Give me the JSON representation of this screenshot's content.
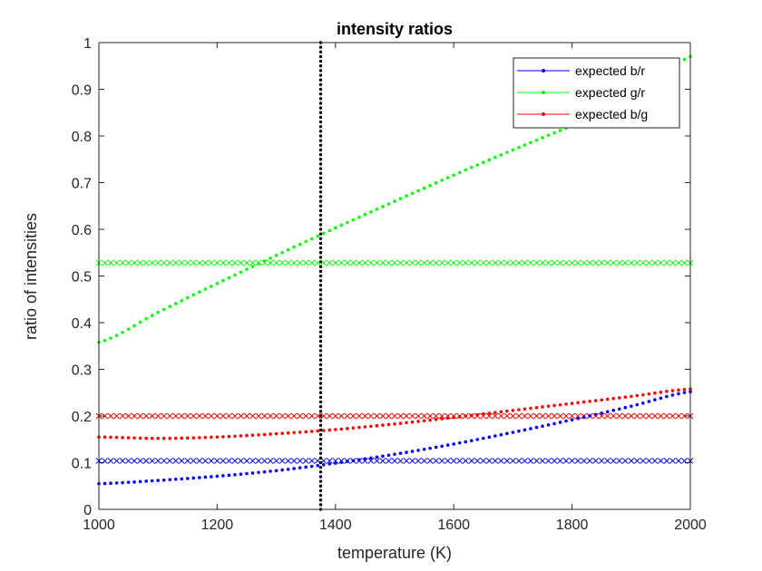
{
  "chart_data": {
    "type": "line",
    "title": "intensity ratios",
    "xlabel": "temperature (K)",
    "ylabel": "ratio of intensities",
    "xlim": [
      1000,
      2000
    ],
    "ylim": [
      0,
      1
    ],
    "xticks": [
      "1000",
      "1200",
      "1400",
      "1600",
      "1800",
      "2000"
    ],
    "yticks": [
      "0",
      "0.1",
      "0.2",
      "0.3",
      "0.4",
      "0.5",
      "0.6",
      "0.7",
      "0.8",
      "0.9",
      "1"
    ],
    "grid": false,
    "legend_position": "top-right",
    "series": [
      {
        "name": "expected b/r",
        "color": "#0000ff",
        "marker": "dot",
        "x": [
          1000,
          1100,
          1200,
          1300,
          1400,
          1500,
          1600,
          1700,
          1800,
          1900,
          2000
        ],
        "values": [
          0.055,
          0.062,
          0.071,
          0.083,
          0.099,
          0.118,
          0.14,
          0.165,
          0.192,
          0.221,
          0.252
        ]
      },
      {
        "name": "expected g/r",
        "color": "#00ff00",
        "marker": "dot",
        "x": [
          1000,
          1100,
          1200,
          1300,
          1400,
          1500,
          1600,
          1700,
          1800,
          1900,
          2000
        ],
        "values": [
          0.358,
          0.422,
          0.484,
          0.544,
          0.603,
          0.66,
          0.716,
          0.77,
          0.822,
          0.872,
          0.97
        ]
      },
      {
        "name": "expected b/g",
        "color": "#ff0000",
        "marker": "dot",
        "x": [
          1000,
          1100,
          1200,
          1300,
          1400,
          1500,
          1600,
          1700,
          1800,
          1900,
          2000
        ],
        "values": [
          0.155,
          0.152,
          0.155,
          0.162,
          0.171,
          0.183,
          0.197,
          0.212,
          0.227,
          0.242,
          0.258
        ]
      }
    ],
    "reference_lines": [
      {
        "orientation": "horizontal",
        "value": 0.528,
        "color": "#00ff00",
        "marker": "x"
      },
      {
        "orientation": "horizontal",
        "value": 0.2,
        "color": "#ff0000",
        "marker": "x"
      },
      {
        "orientation": "horizontal",
        "value": 0.104,
        "color": "#0000ff",
        "marker": "x"
      },
      {
        "orientation": "vertical",
        "value": 1375,
        "color": "#000000",
        "marker": "dot"
      }
    ]
  }
}
